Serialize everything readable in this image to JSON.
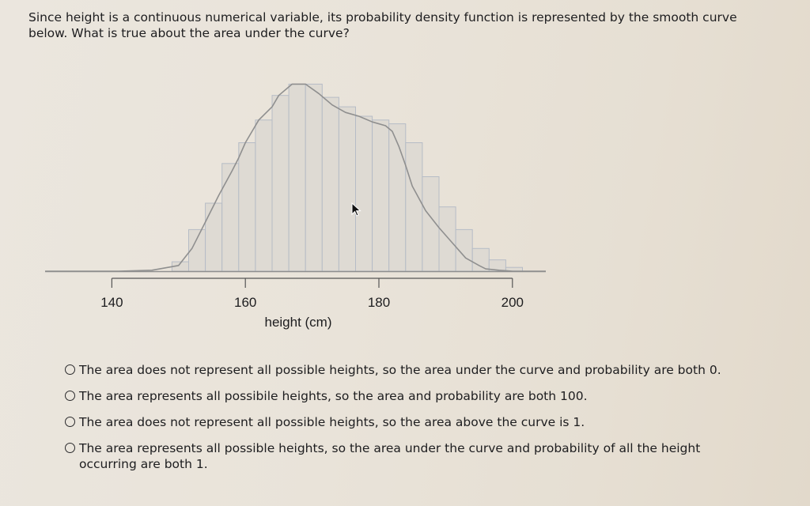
{
  "question": {
    "text": "Since height is a continuous numerical variable, its probability density function is represented by the smooth curve below. What is true about the area under the curve?"
  },
  "chart_data": {
    "type": "area",
    "title": "",
    "xlabel": "height (cm)",
    "ylabel": "",
    "xticks": [
      140,
      160,
      180,
      200
    ],
    "tick_labels": [
      "140",
      "160",
      "180",
      "200"
    ],
    "xlim": [
      130,
      205
    ],
    "ylim": [
      0,
      1
    ],
    "grid": false,
    "curve": {
      "x": [
        130,
        141,
        146,
        150,
        152,
        154,
        156,
        158,
        159,
        160,
        162,
        164,
        165,
        167,
        169,
        171,
        173,
        175,
        177,
        179,
        181,
        182,
        183,
        184,
        185,
        187,
        189,
        191,
        193,
        195,
        196,
        198,
        200,
        203,
        205
      ],
      "y": [
        0,
        0,
        0.005,
        0.03,
        0.12,
        0.26,
        0.4,
        0.53,
        0.6,
        0.68,
        0.8,
        0.87,
        0.93,
        0.99,
        0.99,
        0.94,
        0.88,
        0.84,
        0.82,
        0.79,
        0.77,
        0.74,
        0.66,
        0.56,
        0.45,
        0.32,
        0.23,
        0.15,
        0.07,
        0.03,
        0.012,
        0.005,
        0,
        0,
        0
      ]
    },
    "histogram": {
      "bin_start": 149,
      "bin_width": 2.5,
      "values": [
        0.05,
        0.22,
        0.36,
        0.57,
        0.68,
        0.8,
        0.93,
        0.99,
        0.99,
        0.92,
        0.87,
        0.82,
        0.8,
        0.78,
        0.68,
        0.5,
        0.34,
        0.22,
        0.12,
        0.06,
        0.02
      ]
    }
  },
  "options": [
    {
      "text": "The area does not represent all possible heights, so the area under the curve and probability are both 0."
    },
    {
      "text": "The area represents all possibile heights, so the area and probability are both 100."
    },
    {
      "text": "The area does not represent all possible heights, so the area above the curve is 1."
    },
    {
      "text": "The area represents all possible heights, so the area under the curve and probability of all the height occurring are both 1."
    }
  ],
  "colors": {
    "curve": "#8f8f8f",
    "bar_fill": "#dedad3",
    "bar_stroke": "#b6bcc6",
    "axis": "#555555",
    "radio": "#2a2a2c"
  },
  "icons": {
    "cursor": "mouse-pointer-icon"
  }
}
